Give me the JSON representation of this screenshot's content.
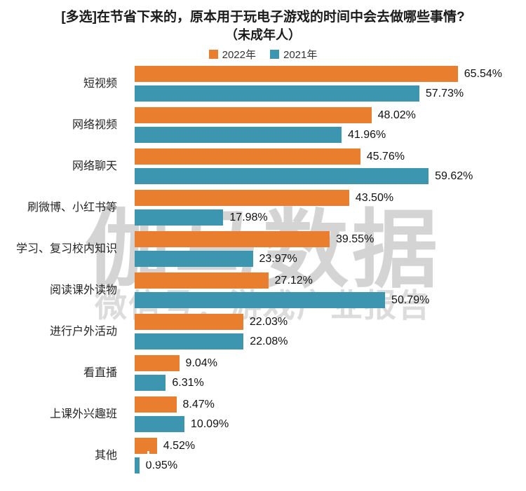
{
  "title": {
    "line1": "[多选]在节省下来的，原本用于玩电子游戏的时间中会去做哪些事情?",
    "line2": "（未成年人）"
  },
  "legend": [
    {
      "label": "2022年",
      "color": "#E87E2E"
    },
    {
      "label": "2021年",
      "color": "#3C96AF"
    }
  ],
  "watermark": {
    "primary": "伽马数据",
    "secondary": "微信号：游戏产业报告",
    "fragment": "da"
  },
  "chart_data": {
    "type": "bar",
    "orientation": "horizontal",
    "title": "[多选]在节省下来的，原本用于玩电子游戏的时间中会去做哪些事情?（未成年人）",
    "categories": [
      "短视频",
      "网络视频",
      "网络聊天",
      "刷微博、小红书等",
      "学习、复习校内知识",
      "阅读课外读物",
      "进行户外活动",
      "看直播",
      "上课外兴趣班",
      "其他"
    ],
    "series": [
      {
        "name": "2022年",
        "color": "#E87E2E",
        "values": [
          65.54,
          48.02,
          45.76,
          43.5,
          39.55,
          27.12,
          22.03,
          9.04,
          8.47,
          4.52
        ],
        "labels": [
          "65.54%",
          "48.02%",
          "45.76%",
          "43.50%",
          "39.55%",
          "27.12%",
          "22.03%",
          "9.04%",
          "8.47%",
          "4.52%"
        ]
      },
      {
        "name": "2021年",
        "color": "#3C96AF",
        "values": [
          57.73,
          41.96,
          59.62,
          17.98,
          23.97,
          50.79,
          22.08,
          6.31,
          10.09,
          0.95
        ],
        "labels": [
          "57.73%",
          "41.96%",
          "59.62%",
          "17.98%",
          "23.97%",
          "50.79%",
          "22.08%",
          "6.31%",
          "10.09%",
          "0.95%"
        ]
      }
    ],
    "xlim": [
      0,
      70
    ],
    "value_suffix": "%",
    "grid": false,
    "axis_labels_visible": false,
    "legend_position": "top",
    "value_labels": "outside-end"
  }
}
